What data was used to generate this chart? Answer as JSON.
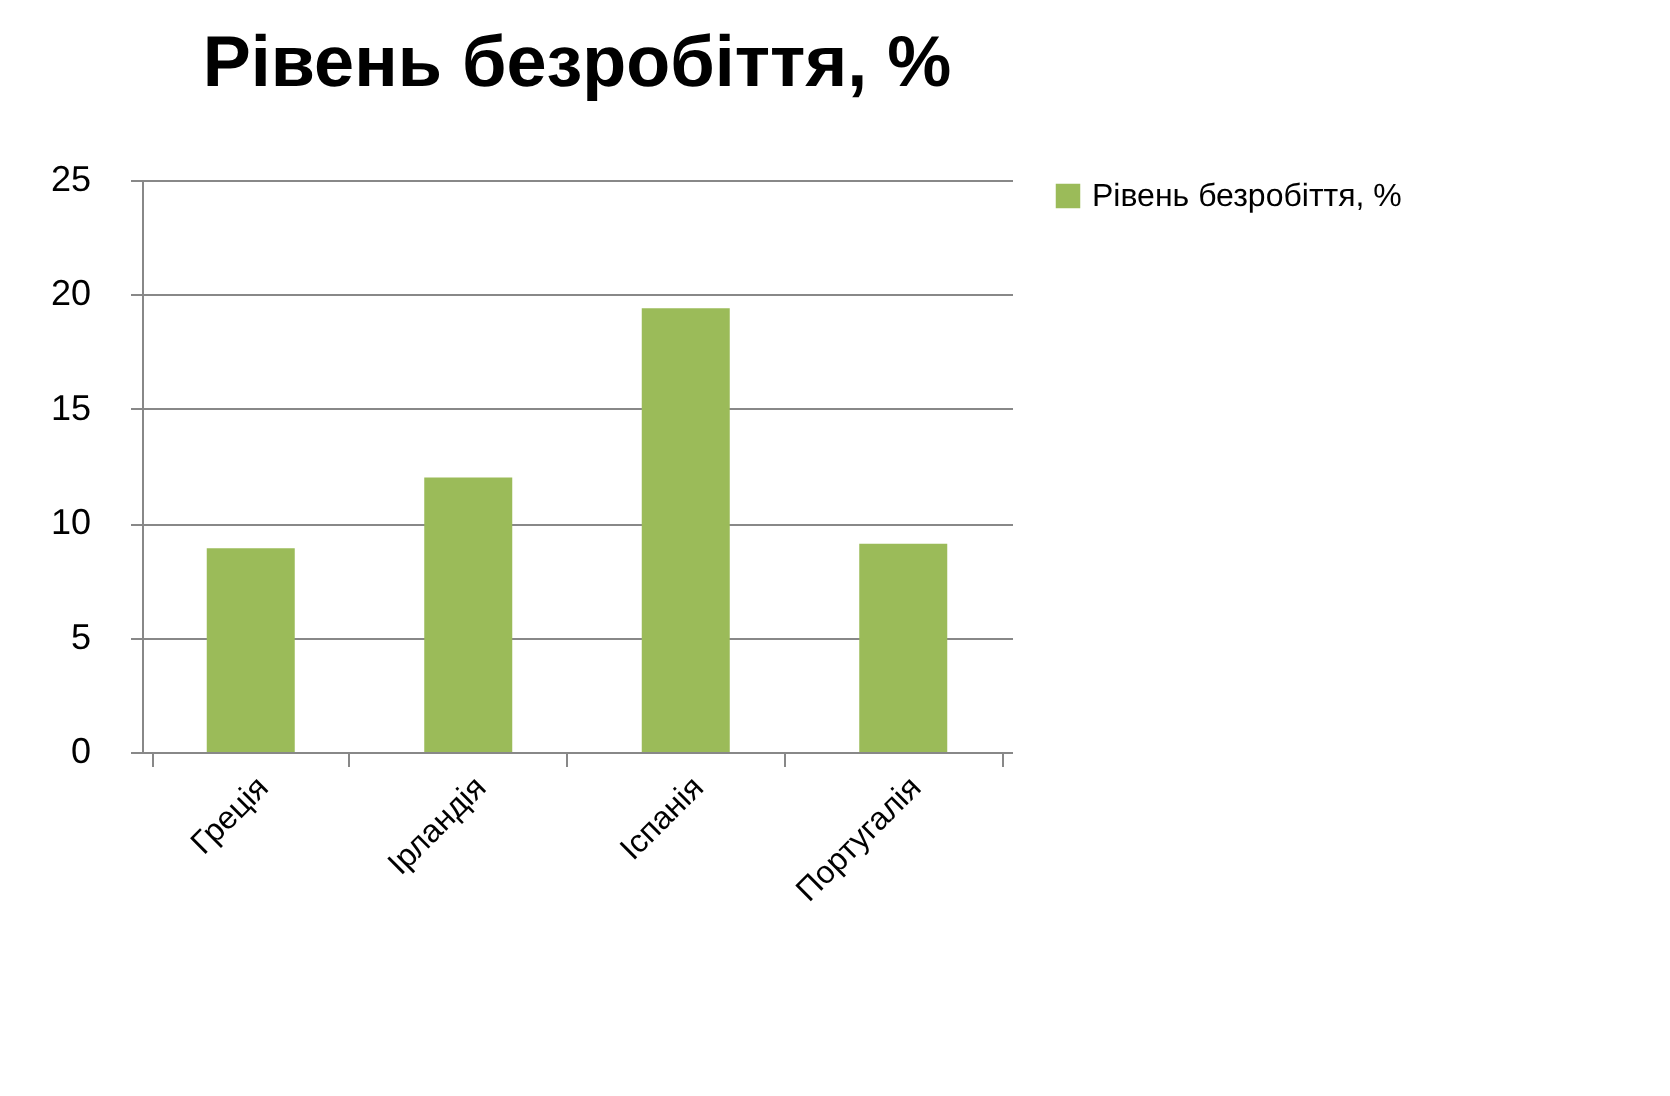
{
  "chart_data": {
    "type": "bar",
    "title": "Рівень безробіття, %",
    "categories": [
      "Греція",
      "Ірландія",
      "Іспанія",
      "Португалія"
    ],
    "series": [
      {
        "name": "Рівень безробіття, %",
        "color": "#9bbb59",
        "values": [
          8.9,
          12,
          19.4,
          9.1
        ]
      }
    ],
    "ylim": [
      0,
      25
    ],
    "yticks": [
      0,
      5,
      10,
      15,
      20,
      25
    ],
    "grid": "y",
    "legend": "right"
  }
}
